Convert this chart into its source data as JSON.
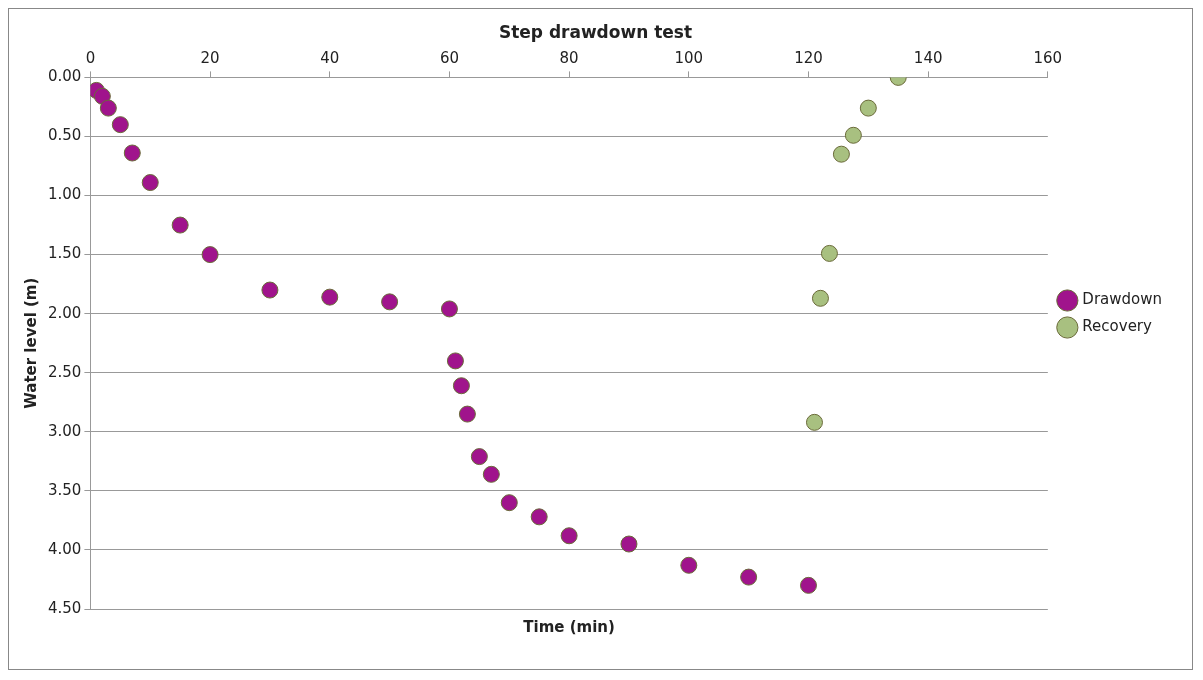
{
  "chart_data": {
    "type": "scatter",
    "title": "Step drawdown test",
    "xlabel": "Time (min)",
    "ylabel": "Water level (m)",
    "xlim": [
      0,
      160
    ],
    "xticks": [
      0,
      20,
      40,
      60,
      80,
      100,
      120,
      140,
      160
    ],
    "ylim": [
      4.5,
      0
    ],
    "yticks": [
      {
        "value": 0,
        "label": "0.00"
      },
      {
        "value": 0.5,
        "label": "0.50"
      },
      {
        "value": 1,
        "label": "1.00"
      },
      {
        "value": 1.5,
        "label": "1.50"
      },
      {
        "value": 2,
        "label": "2.00"
      },
      {
        "value": 2.5,
        "label": "2.50"
      },
      {
        "value": 3,
        "label": "3.00"
      },
      {
        "value": 3.5,
        "label": "3.50"
      },
      {
        "value": 4,
        "label": "4.00"
      },
      {
        "value": 4.5,
        "label": "4.50"
      }
    ],
    "grid": "y",
    "legend": "right",
    "marker": "circle",
    "series": [
      {
        "name": "Drawdown",
        "color": "#a0148c",
        "x": [
          1,
          2,
          3,
          5,
          7,
          10,
          15,
          20,
          30,
          40,
          50,
          60,
          61,
          62,
          63,
          65,
          67,
          70,
          75,
          80,
          90,
          100,
          110,
          120
        ],
        "values": [
          0.11,
          0.16,
          0.26,
          0.4,
          0.64,
          0.89,
          1.25,
          1.5,
          1.8,
          1.86,
          1.9,
          1.96,
          2.4,
          2.61,
          2.85,
          3.21,
          3.36,
          3.6,
          3.72,
          3.88,
          3.95,
          4.13,
          4.23,
          4.3
        ]
      },
      {
        "name": "Recovery",
        "color": "#a8c080",
        "x": [
          135,
          130,
          127.5,
          125.5,
          123.5,
          122,
          121
        ],
        "values": [
          0,
          0.26,
          0.49,
          0.65,
          1.49,
          1.87,
          2.92
        ]
      }
    ]
  }
}
